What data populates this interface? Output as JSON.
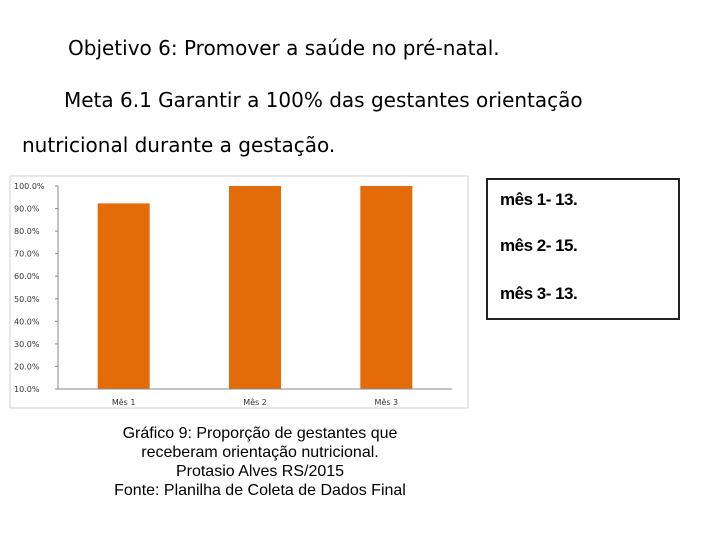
{
  "heading": {
    "objective": "Objetivo 6: Promover a saúde no pré-natal.",
    "goal_line1": "Meta 6.1 Garantir a 100% das gestantes orientação",
    "goal_line2": "nutricional durante a gestação."
  },
  "chart_data": {
    "type": "bar",
    "categories": [
      "Mês 1",
      "Mês 2",
      "Mês 3"
    ],
    "values": [
      0.923,
      1.0,
      1.0
    ],
    "title": "",
    "xlabel": "",
    "ylabel": "",
    "ylim": [
      0.1,
      1.0
    ],
    "yticks": [
      "10.0%",
      "20.0%",
      "30.0%",
      "40.0%",
      "50.0%",
      "60.0%",
      "70.0%",
      "80.0%",
      "90.0%",
      "100.0%"
    ],
    "bar_color": "#E36C09",
    "grid": false
  },
  "legend": {
    "items": [
      "mês 1-  13.",
      "mês 2-   15.",
      "mês 3-   13."
    ]
  },
  "caption": {
    "line1": "Gráfico 9: Proporção de gestantes que",
    "line2": "receberam orientação nutricional.",
    "line3": "Protasio Alves RS/2015",
    "line4": "Fonte: Planilha de Coleta de Dados Final"
  }
}
